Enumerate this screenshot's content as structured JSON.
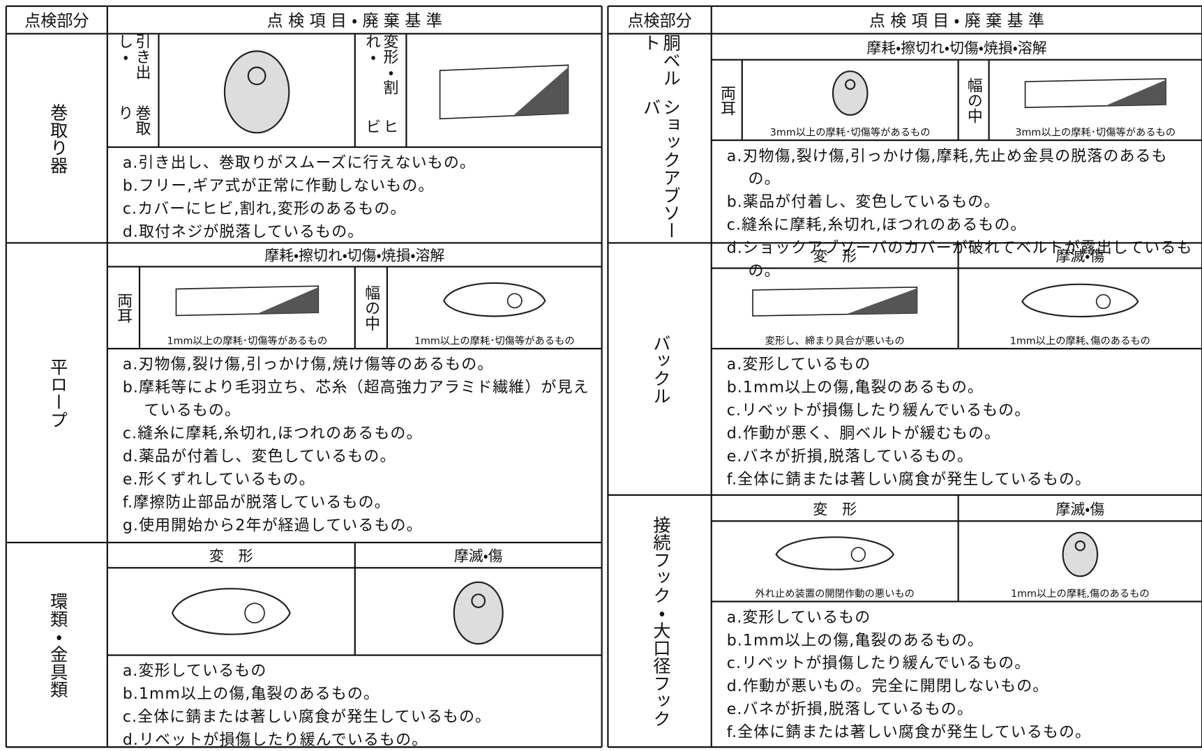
{
  "tables": [
    {
      "header_part": "点検部分",
      "header_criteria": "点 検 項 目 ・ 廃 棄 基 準",
      "sections": [
        {
          "part": [
            "巻取り器"
          ],
          "columns": [
            {
              "label": [
                "引き出し・",
                "巻取り"
              ]
            },
            {
              "label": [
                "変形・割れ・",
                "ヒビ"
              ]
            }
          ],
          "items": [
            "a.引き出し、巻取りがスムーズに行えないもの。",
            "b.フリー,ギア式が正常に作動しないもの。",
            "c.カバーにヒビ,割れ,変形のあるもの。",
            "d.取付ネジが脱落しているもの。"
          ]
        },
        {
          "part": [
            "平ロープ"
          ],
          "heading": "摩耗・擦切れ・切傷・焼損・溶解",
          "columns": [
            {
              "label": [
                "両耳"
              ],
              "caption": "1mm以上の摩耗･切傷等があるもの"
            },
            {
              "label": [
                "幅の中"
              ],
              "caption": "1mm以上の摩耗･切傷等があるもの"
            }
          ],
          "items": [
            "a.刃物傷,裂け傷,引っかけ傷,焼け傷等のあるもの。",
            "b.摩耗等により毛羽立ち、芯糸（超高強力アラミド繊維）が見えているもの。",
            "c.縫糸に摩耗,糸切れ,ほつれのあるもの。",
            "d.薬品が付着し、変色しているもの。",
            "e.形くずれしているもの。",
            "f.摩擦防止部品が脱落しているもの。",
            "g.使用開始から2年が経過しているもの。"
          ]
        },
        {
          "part": [
            "環類・金具類"
          ],
          "columns": [
            {
              "heading": "変　形"
            },
            {
              "heading": "摩滅・傷"
            }
          ],
          "items": [
            "a.変形しているもの",
            "b.1mm以上の傷,亀裂のあるもの。",
            "c.全体に錆または著しい腐食が発生しているもの。",
            "d.リベットが損傷したり緩んでいるもの。"
          ]
        }
      ]
    },
    {
      "header_part": "点検部分",
      "header_criteria": "点 検 項 目 ・ 廃 棄 基 準",
      "sections": [
        {
          "part": [
            "胴ベルト",
            "ショックアブソーバ"
          ],
          "heading": "摩耗・擦切れ・切傷・焼損・溶解",
          "columns": [
            {
              "label": [
                "両耳"
              ],
              "caption": "3mm以上の摩耗･切傷等があるもの"
            },
            {
              "label": [
                "幅の中"
              ],
              "caption": "3mm以上の摩耗･切傷等があるもの"
            }
          ],
          "items": [
            "a.刃物傷,裂け傷,引っかけ傷,摩耗,先止め金具の脱落のあるもの。",
            "b.薬品が付着し、変色しているもの。",
            "c.縫糸に摩耗,糸切れ,ほつれのあるもの。",
            "d.ショックアブソーバのカバーが破れてベルトが露出しているもの。"
          ]
        },
        {
          "part": [
            "バックル"
          ],
          "columns": [
            {
              "heading": "変　形",
              "caption": "変形し、締まり具合が悪いもの"
            },
            {
              "heading": "摩滅・傷",
              "caption": "1mm以上の摩耗､傷のあるもの"
            }
          ],
          "items": [
            "a.変形しているもの",
            "b.1mm以上の傷,亀裂のあるもの。",
            "c.リベットが損傷したり緩んでいるもの。",
            "d.作動が悪く、胴ベルトが緩むもの。",
            "e.バネが折損,脱落しているもの。",
            "f.全体に錆または著しい腐食が発生しているもの。"
          ]
        },
        {
          "part": [
            "接続フック・大口径フック"
          ],
          "columns": [
            {
              "heading": "変　形",
              "caption": "外れ止め装置の開閉作動の悪いもの"
            },
            {
              "heading": "摩滅・傷",
              "caption": "1mm以上の摩耗,傷のあるもの"
            }
          ],
          "items": [
            "a.変形しているもの",
            "b.1mm以上の傷,亀裂のあるもの。",
            "c.リベットが損傷したり緩んでいるもの。",
            "d.作動が悪いもの。完全に開閉しないもの。",
            "e.バネが折損,脱落しているもの。",
            "f.全体に錆または著しい腐食が発生しているもの。"
          ]
        }
      ]
    }
  ]
}
